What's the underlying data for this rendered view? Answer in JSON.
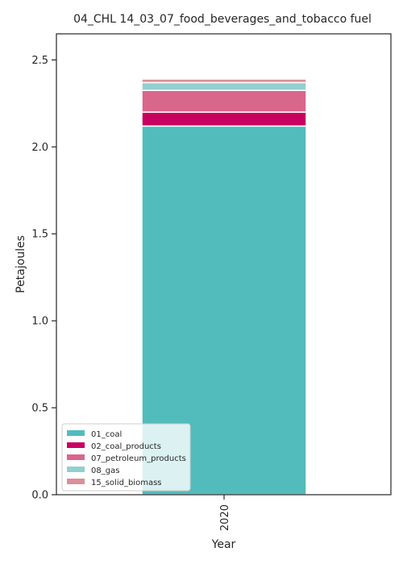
{
  "chart_data": {
    "type": "bar",
    "stacked": true,
    "title": "04_CHL 14_03_07_food_beverages_and_tobacco fuel",
    "xlabel": "Year",
    "ylabel": "Petajoules",
    "categories": [
      "2020"
    ],
    "ylim": [
      0,
      2.65
    ],
    "yticks": [
      "0.0",
      "0.5",
      "1.0",
      "1.5",
      "2.0",
      "2.5"
    ],
    "grid": false,
    "legend_position": "lower-left",
    "series": [
      {
        "name": "01_coal",
        "values": [
          2.12
        ],
        "color": "#52bcbc"
      },
      {
        "name": "02_coal_products",
        "values": [
          0.08
        ],
        "color": "#c8005f"
      },
      {
        "name": "07_petroleum_products",
        "values": [
          0.125
        ],
        "color": "#d9668b"
      },
      {
        "name": "08_gas",
        "values": [
          0.045
        ],
        "color": "#92cfd1"
      },
      {
        "name": "15_solid_biomass",
        "values": [
          0.02
        ],
        "color": "#dc8f99"
      }
    ]
  }
}
